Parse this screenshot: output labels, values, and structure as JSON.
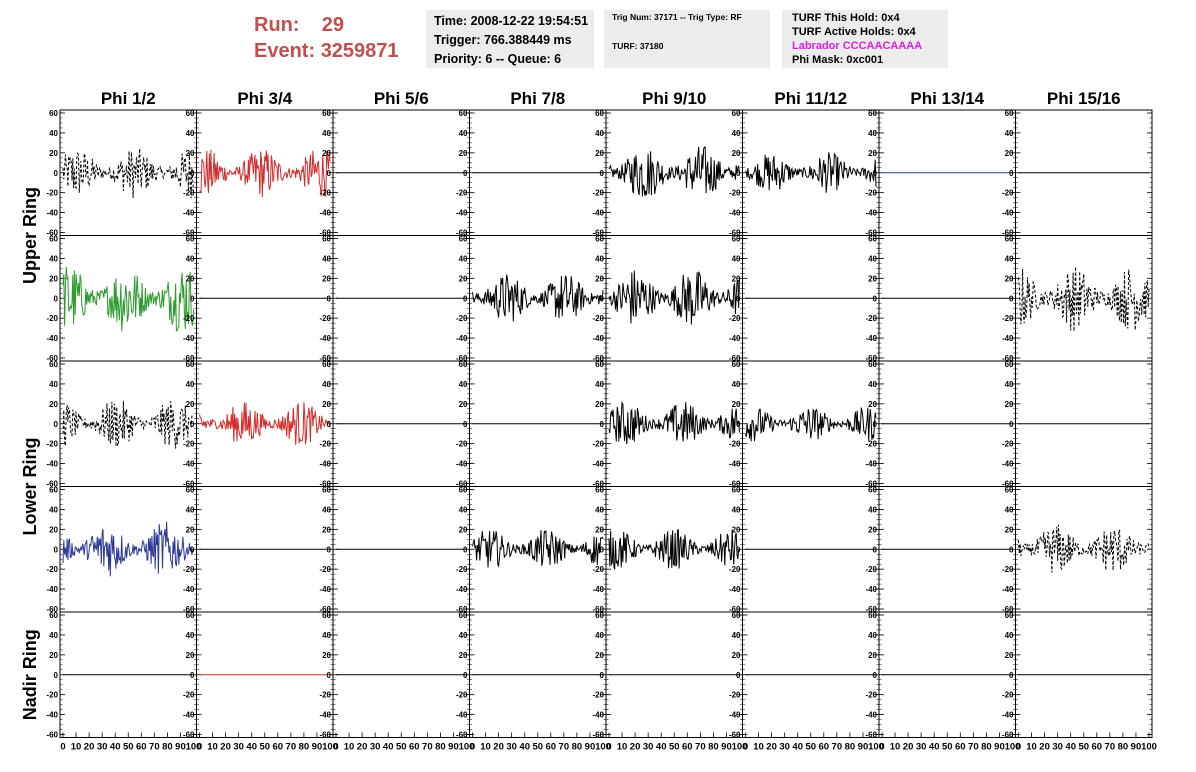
{
  "header": {
    "run_label": "Run:",
    "run_value": "29",
    "event_label": "Event:",
    "event_value": "3259871"
  },
  "info_box_time": {
    "time": "Time: 2008-12-22 19:54:51",
    "trigger": "Trigger: 766.388449 ms",
    "priority_queue": "Priority: 6 -- Queue: 6"
  },
  "info_box_trig": {
    "trig_line": "Trig Num: 37171 -- Trig Type: RF",
    "turf_line": "TURF: 37180"
  },
  "info_box_turf": {
    "this_hold": "TURF This Hold: 0x4",
    "active_holds": "TURF Active Holds: 0x4",
    "labrador": "Labrador CCCAACAAAA",
    "phi_mask": "Phi Mask: 0xc001"
  },
  "colors": {
    "run_text": "#c0504d",
    "labrador_text": "#e31be3",
    "trace_black": "#000000",
    "trace_red": "#d22b2b",
    "trace_green": "#2e9a2e",
    "trace_blue": "#2c3a94",
    "info_box_bg": "#ececec"
  },
  "columns": [
    "Phi 1/2",
    "Phi 3/4",
    "Phi 5/6",
    "Phi 7/8",
    "Phi 9/10",
    "Phi 11/12",
    "Phi 13/14",
    "Phi 15/16"
  ],
  "rows": [
    "Upper Ring",
    "Upper Ring",
    "Lower Ring",
    "Lower Ring",
    "Nadir Ring"
  ],
  "ring_labels": [
    "Upper Ring",
    "Lower Ring",
    "Nadir Ring"
  ],
  "y_ticks": [
    "60",
    "40",
    "20",
    "0",
    "-20",
    "-40",
    "-60"
  ],
  "x_ticks": [
    "0",
    "10",
    "20",
    "30",
    "40",
    "50",
    "60",
    "70",
    "80",
    "90",
    "100"
  ],
  "chart_data": {
    "type": "line",
    "ylim": [
      -60,
      60
    ],
    "xlim": [
      0,
      100
    ],
    "panels": [
      [
        {
          "color": "black",
          "style": "dashed",
          "amp": 20
        },
        {
          "color": "red",
          "style": "solid",
          "amp": 20
        },
        {
          "color": "black",
          "style": "flat",
          "amp": 0
        },
        {
          "color": "black",
          "style": "flat",
          "amp": 0
        },
        {
          "color": "black",
          "style": "solid",
          "amp": 22
        },
        {
          "color": "black",
          "style": "solid",
          "amp": 16
        },
        {
          "color": "blue",
          "style": "flat",
          "amp": 0
        },
        {
          "color": "black",
          "style": "flat",
          "amp": 0
        }
      ],
      [
        {
          "color": "green",
          "style": "solid",
          "amp": 28
        },
        {
          "color": "black",
          "style": "flat",
          "amp": 0
        },
        {
          "color": "black",
          "style": "flat",
          "amp": 0
        },
        {
          "color": "black",
          "style": "solid",
          "amp": 20
        },
        {
          "color": "black",
          "style": "solid",
          "amp": 24
        },
        {
          "color": "black",
          "style": "flat",
          "amp": 0
        },
        {
          "color": "black",
          "style": "flat",
          "amp": 0
        },
        {
          "color": "black",
          "style": "dashed",
          "amp": 26
        }
      ],
      [
        {
          "color": "black",
          "style": "dashed",
          "amp": 20
        },
        {
          "color": "red",
          "style": "solid",
          "amp": 18
        },
        {
          "color": "black",
          "style": "flat",
          "amp": 0
        },
        {
          "color": "black",
          "style": "flat",
          "amp": 0
        },
        {
          "color": "black",
          "style": "solid",
          "amp": 18
        },
        {
          "color": "black",
          "style": "solid",
          "amp": 14
        },
        {
          "color": "black",
          "style": "flat",
          "amp": 0
        },
        {
          "color": "black",
          "style": "flat",
          "amp": 0
        }
      ],
      [
        {
          "color": "blue",
          "style": "solid",
          "amp": 22
        },
        {
          "color": "black",
          "style": "flat",
          "amp": 0
        },
        {
          "color": "black",
          "style": "flat",
          "amp": 0
        },
        {
          "color": "black",
          "style": "solid",
          "amp": 16
        },
        {
          "color": "black",
          "style": "solid",
          "amp": 16
        },
        {
          "color": "black",
          "style": "flat",
          "amp": 0
        },
        {
          "color": "black",
          "style": "flat",
          "amp": 0
        },
        {
          "color": "black",
          "style": "dashed",
          "amp": 20
        }
      ],
      [
        {
          "color": "black",
          "style": "flat",
          "amp": 0
        },
        {
          "color": "red",
          "style": "flat",
          "amp": 0
        },
        {
          "color": "black",
          "style": "flat",
          "amp": 0
        },
        {
          "color": "black",
          "style": "flat",
          "amp": 0
        },
        {
          "color": "black",
          "style": "flat",
          "amp": 0
        },
        {
          "color": "black",
          "style": "flat",
          "amp": 0
        },
        {
          "color": "black",
          "style": "flat",
          "amp": 0
        },
        {
          "color": "black",
          "style": "flat",
          "amp": 0
        }
      ]
    ]
  }
}
